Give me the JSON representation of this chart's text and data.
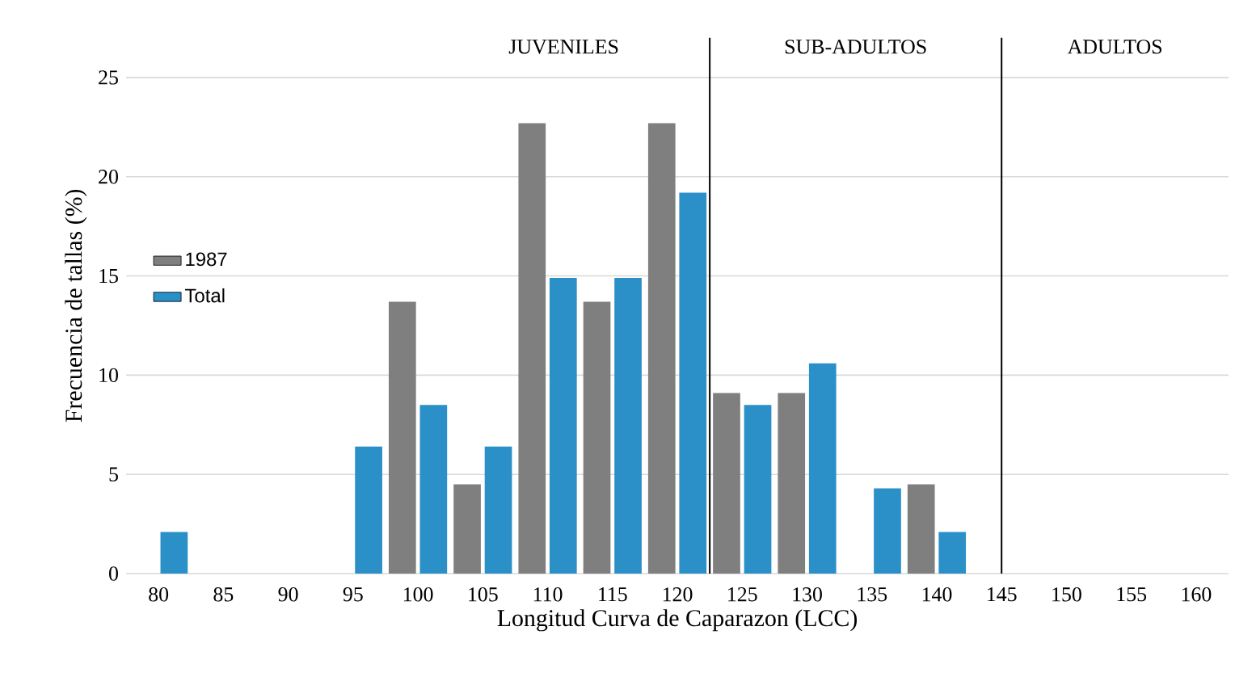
{
  "chart_data": {
    "type": "bar",
    "xlabel": "Longitud Curva de Caparazon (LCC)",
    "ylabel": "Frecuencia de tallas (%)",
    "x": [
      80,
      85,
      90,
      95,
      100,
      105,
      110,
      115,
      120,
      125,
      130,
      135,
      140,
      145,
      150,
      155,
      160
    ],
    "series": [
      {
        "name": "1987",
        "color": "#7f7f7f",
        "values": [
          0,
          0,
          0,
          0,
          13.7,
          4.5,
          22.7,
          13.7,
          22.7,
          9.1,
          9.1,
          0,
          4.5,
          0,
          0,
          0,
          0
        ]
      },
      {
        "name": "Total",
        "color": "#2b8fc8",
        "values": [
          2.1,
          0,
          0,
          6.4,
          8.5,
          6.4,
          14.9,
          14.9,
          19.2,
          8.5,
          10.6,
          4.3,
          2.1,
          0,
          0,
          0,
          0
        ]
      }
    ],
    "xlim": [
      77.5,
      162.5
    ],
    "ylim": [
      0,
      27
    ],
    "xticks": [
      80,
      85,
      90,
      95,
      100,
      105,
      110,
      115,
      120,
      125,
      130,
      135,
      140,
      145,
      150,
      155,
      160
    ],
    "yticks": [
      0,
      5,
      10,
      15,
      20,
      25
    ],
    "ref_lines": [
      {
        "axis": "x",
        "value": 122.5,
        "color": "#000000"
      },
      {
        "axis": "x",
        "value": 145,
        "color": "#000000"
      }
    ],
    "annotations": [
      "JUVENILES",
      "SUB-ADULTOS",
      "ADULTOS"
    ],
    "grid": "y",
    "legend": "left"
  }
}
